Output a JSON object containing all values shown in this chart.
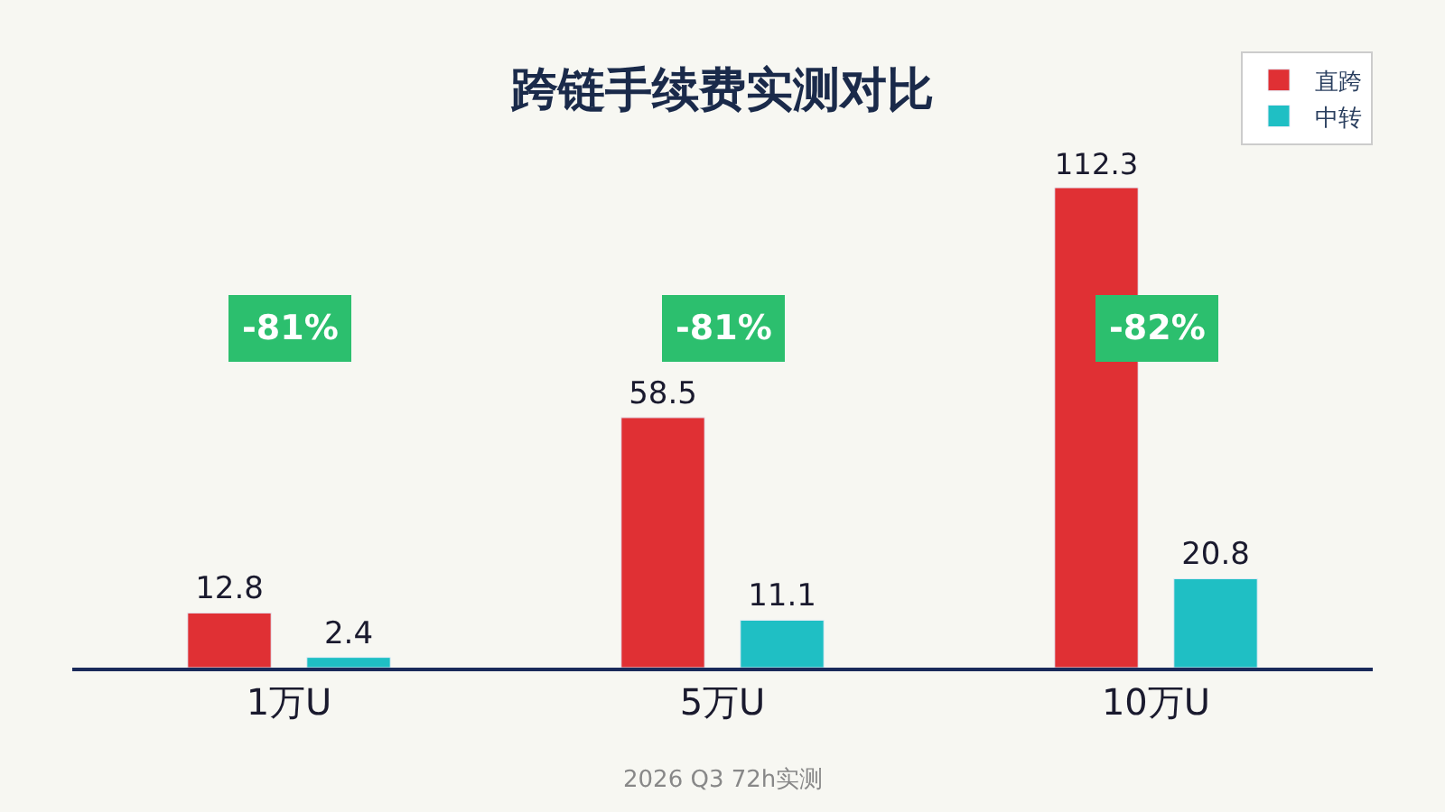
{
  "chart_data": {
    "type": "bar",
    "title": "跨链手续费实测对比",
    "categories": [
      "1万U",
      "5万U",
      "10万U"
    ],
    "series": [
      {
        "name": "直跨",
        "color": "#e03034",
        "values": [
          12.8,
          58.5,
          112.3
        ]
      },
      {
        "name": "中转",
        "color": "#1fbfc4",
        "values": [
          2.4,
          11.1,
          20.8
        ]
      }
    ],
    "data_labels": true,
    "tick_labels": "x",
    "grid": false,
    "legend": "top right",
    "annotations": [
      "-81%",
      "-81%",
      "-82%",
      "2026 Q3 72h实测"
    ]
  }
}
